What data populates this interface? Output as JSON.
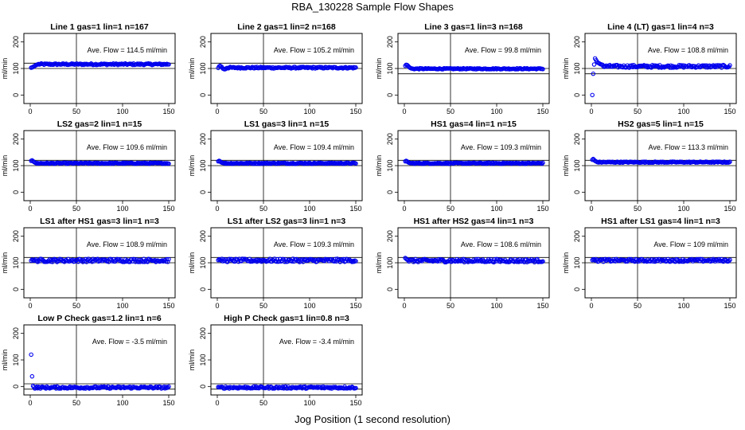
{
  "figure": {
    "title": "RBA_130228  Sample Flow Shapes",
    "xlabel": "Jog Position (1 second resolution)"
  },
  "colors": {
    "points": "#0000ee",
    "axes": "#000000"
  },
  "chart_data": [
    {
      "type": "scatter",
      "title": "Line 1 gas=1 lin=1 n=167",
      "ylabel": "ml/min",
      "annotation": "Ave. Flow =  114.5  ml/min",
      "xlim": [
        0,
        150
      ],
      "ylim": [
        -20,
        220
      ],
      "xticks": [
        0,
        50,
        100,
        150
      ],
      "yticks": [
        0,
        100,
        200
      ],
      "hlines": [
        100,
        120
      ],
      "vline": 50,
      "pattern": {
        "n": 150,
        "level": 116,
        "noise": 3,
        "start": [
          103,
          104,
          106,
          108,
          110,
          112,
          114,
          115
        ]
      }
    },
    {
      "type": "scatter",
      "title": "Line 2 gas=1 lin=2 n=168",
      "ylabel": "ml/min",
      "annotation": "Ave. Flow =  105.2  ml/min",
      "xlim": [
        0,
        150
      ],
      "ylim": [
        -20,
        220
      ],
      "xticks": [
        0,
        50,
        100,
        150
      ],
      "yticks": [
        0,
        100,
        200
      ],
      "hlines": [
        100,
        120
      ],
      "vline": 50,
      "pattern": {
        "n": 150,
        "level": 103,
        "noise": 3,
        "start": [
          102,
          108,
          110,
          108,
          105,
          100,
          98,
          97,
          98
        ]
      }
    },
    {
      "type": "scatter",
      "title": "Line 3 gas=1 lin=3 n=168",
      "ylabel": "ml/min",
      "annotation": "Ave. Flow =  99.8  ml/min",
      "xlim": [
        0,
        150
      ],
      "ylim": [
        -20,
        220
      ],
      "xticks": [
        0,
        50,
        100,
        150
      ],
      "yticks": [
        0,
        100,
        200
      ],
      "hlines": [
        80,
        100
      ],
      "vline": 50,
      "pattern": {
        "n": 150,
        "level": 99,
        "noise": 2,
        "start": [
          110,
          114,
          113,
          110,
          106,
          103,
          101,
          100
        ]
      }
    },
    {
      "type": "scatter",
      "title": "Line 4 (LT) gas=1 lin=4 n=3",
      "ylabel": "ml/min",
      "annotation": "Ave. Flow =  108.8  ml/min",
      "xlim": [
        0,
        150
      ],
      "ylim": [
        -20,
        220
      ],
      "xticks": [
        0,
        50,
        100,
        150
      ],
      "yticks": [
        0,
        100,
        200
      ],
      "hlines": [
        80,
        100
      ],
      "vline": 50,
      "pattern": {
        "n": 150,
        "level": 108,
        "noise": 5,
        "start": [
          0,
          80,
          115,
          138,
          132,
          126,
          122,
          120,
          118,
          116,
          115,
          114
        ]
      }
    },
    {
      "type": "scatter",
      "title": "LS2 gas=2 lin=1 n=15",
      "ylabel": "ml/min",
      "annotation": "Ave. Flow =  109.6  ml/min",
      "xlim": [
        0,
        150
      ],
      "ylim": [
        -20,
        220
      ],
      "xticks": [
        0,
        50,
        100,
        150
      ],
      "yticks": [
        0,
        100,
        200
      ],
      "hlines": [
        100,
        120
      ],
      "vline": 50,
      "pattern": {
        "n": 150,
        "level": 109,
        "noise": 2,
        "start": [
          118,
          120,
          117,
          114,
          112,
          110
        ]
      }
    },
    {
      "type": "scatter",
      "title": "LS1 gas=3 lin=1 n=15",
      "ylabel": "ml/min",
      "annotation": "Ave. Flow =  109.4  ml/min",
      "xlim": [
        0,
        150
      ],
      "ylim": [
        -20,
        220
      ],
      "xticks": [
        0,
        50,
        100,
        150
      ],
      "yticks": [
        0,
        100,
        200
      ],
      "hlines": [
        100,
        120
      ],
      "vline": 50,
      "pattern": {
        "n": 150,
        "level": 109,
        "noise": 2,
        "start": [
          116,
          118,
          116,
          113,
          111,
          110
        ]
      }
    },
    {
      "type": "scatter",
      "title": "HS1 gas=4 lin=1 n=15",
      "ylabel": "ml/min",
      "annotation": "Ave. Flow =  109.3  ml/min",
      "xlim": [
        0,
        150
      ],
      "ylim": [
        -20,
        220
      ],
      "xticks": [
        0,
        50,
        100,
        150
      ],
      "yticks": [
        0,
        100,
        200
      ],
      "hlines": [
        100,
        120
      ],
      "vline": 50,
      "pattern": {
        "n": 150,
        "level": 109,
        "noise": 2,
        "start": [
          116,
          118,
          116,
          113,
          111,
          110
        ]
      }
    },
    {
      "type": "scatter",
      "title": "HS2 gas=5 lin=1 n=15",
      "ylabel": "ml/min",
      "annotation": "Ave. Flow =  113.3  ml/min",
      "xlim": [
        0,
        150
      ],
      "ylim": [
        -20,
        220
      ],
      "xticks": [
        0,
        50,
        100,
        150
      ],
      "yticks": [
        0,
        100,
        200
      ],
      "hlines": [
        100,
        120
      ],
      "vline": 50,
      "pattern": {
        "n": 150,
        "level": 113,
        "noise": 2,
        "start": [
          122,
          125,
          121,
          118,
          116,
          114
        ]
      }
    },
    {
      "type": "scatter",
      "title": "LS1 after HS1 gas=3 lin=1 n=3",
      "ylabel": "ml/min",
      "annotation": "Ave. Flow =  108.9  ml/min",
      "xlim": [
        0,
        150
      ],
      "ylim": [
        -20,
        220
      ],
      "xticks": [
        0,
        50,
        100,
        150
      ],
      "yticks": [
        0,
        100,
        200
      ],
      "hlines": [
        100,
        120
      ],
      "vline": 50,
      "pattern": {
        "n": 150,
        "level": 109,
        "noise": 6,
        "start": [
          108,
          112,
          110,
          108
        ]
      }
    },
    {
      "type": "scatter",
      "title": "LS1 after LS2 gas=3 lin=1 n=3",
      "ylabel": "ml/min",
      "annotation": "Ave. Flow =  109.3  ml/min",
      "xlim": [
        0,
        150
      ],
      "ylim": [
        -20,
        220
      ],
      "xticks": [
        0,
        50,
        100,
        150
      ],
      "yticks": [
        0,
        100,
        200
      ],
      "hlines": [
        100,
        120
      ],
      "vline": 50,
      "pattern": {
        "n": 150,
        "level": 109,
        "noise": 6,
        "start": [
          110,
          113,
          111,
          109
        ]
      }
    },
    {
      "type": "scatter",
      "title": "HS1 after HS2 gas=4 lin=1 n=3",
      "ylabel": "ml/min",
      "annotation": "Ave. Flow =  108.6  ml/min",
      "xlim": [
        0,
        150
      ],
      "ylim": [
        -20,
        220
      ],
      "xticks": [
        0,
        50,
        100,
        150
      ],
      "yticks": [
        0,
        100,
        200
      ],
      "hlines": [
        100,
        120
      ],
      "vline": 50,
      "pattern": {
        "n": 150,
        "level": 108,
        "noise": 6,
        "start": [
          118,
          115,
          112,
          110
        ]
      }
    },
    {
      "type": "scatter",
      "title": "HS1 after LS1 gas=4 lin=1 n=3",
      "ylabel": "ml/min",
      "annotation": "Ave. Flow =  109  ml/min",
      "xlim": [
        0,
        150
      ],
      "ylim": [
        -20,
        220
      ],
      "xticks": [
        0,
        50,
        100,
        150
      ],
      "yticks": [
        0,
        100,
        200
      ],
      "hlines": [
        100,
        120
      ],
      "vline": 50,
      "pattern": {
        "n": 150,
        "level": 109,
        "noise": 5,
        "start": [
          110,
          113,
          111,
          109
        ]
      }
    },
    {
      "type": "scatter",
      "title": "Low P Check gas=1.2 lin=1 n=6",
      "ylabel": "ml/min",
      "annotation": "Ave. Flow =  -3.5  ml/min",
      "xlim": [
        0,
        150
      ],
      "ylim": [
        -20,
        220
      ],
      "xticks": [
        0,
        50,
        100,
        150
      ],
      "yticks": [
        0,
        100,
        200
      ],
      "hlines": [
        -10,
        10
      ],
      "vline": 50,
      "pattern": {
        "n": 150,
        "level": -4,
        "noise": 4,
        "start": [
          120,
          38,
          2,
          -2
        ]
      }
    },
    {
      "type": "scatter",
      "title": "High P Check gas=1 lin=0.8 n=3",
      "ylabel": "ml/min",
      "annotation": "Ave. Flow =  -3.4  ml/min",
      "xlim": [
        0,
        150
      ],
      "ylim": [
        -20,
        220
      ],
      "xticks": [
        0,
        50,
        100,
        150
      ],
      "yticks": [
        0,
        100,
        200
      ],
      "hlines": [
        -10,
        10
      ],
      "vline": 50,
      "pattern": {
        "n": 150,
        "level": -4,
        "noise": 4,
        "start": [
          -2,
          -3
        ]
      }
    }
  ]
}
